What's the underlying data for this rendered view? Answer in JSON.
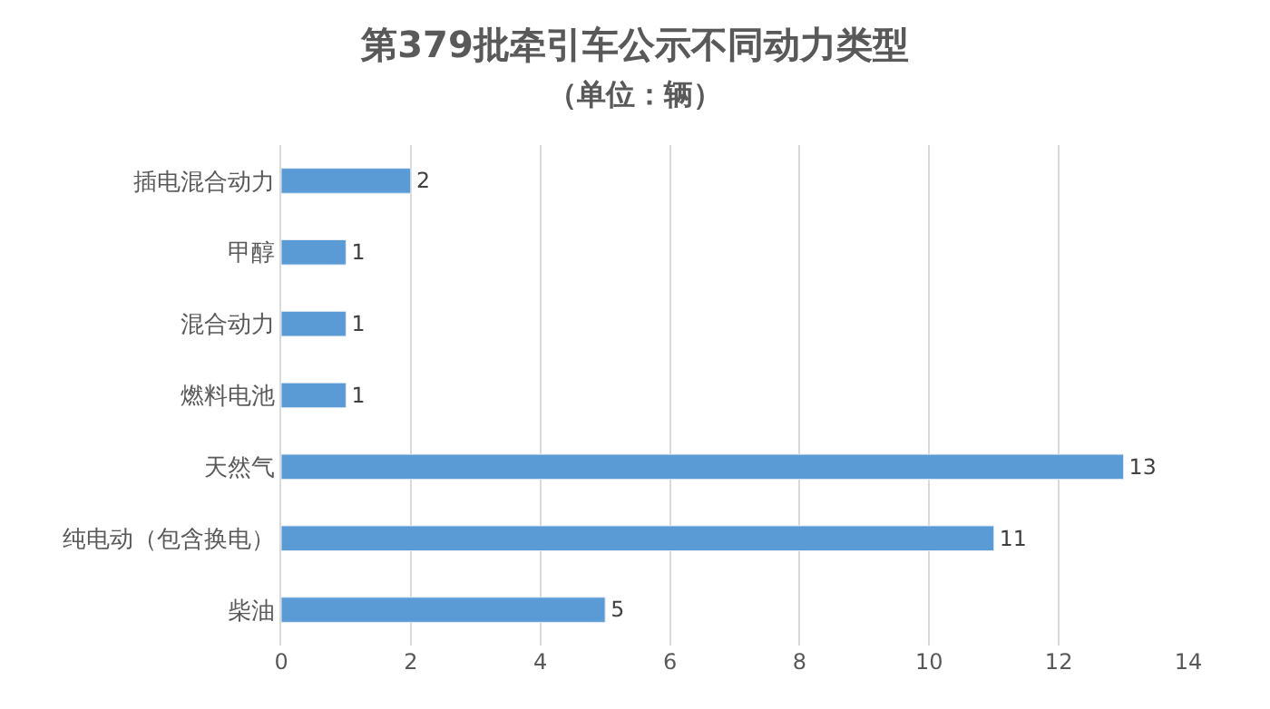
{
  "chart_data": {
    "type": "bar",
    "orientation": "horizontal",
    "title": "第379批牵引车公示不同动力类型",
    "subtitle": "（单位：辆）",
    "categories": [
      "插电混合动力",
      "甲醇",
      "混合动力",
      "燃料电池",
      "天然气",
      "纯电动（包含换电）",
      "柴油"
    ],
    "values": [
      2,
      1,
      1,
      1,
      13,
      11,
      5
    ],
    "color": "#5b9bd5",
    "xlim": [
      0,
      14
    ],
    "xticks": [
      0,
      2,
      4,
      6,
      8,
      10,
      12,
      14
    ],
    "grid": "x",
    "data_labels": true
  }
}
